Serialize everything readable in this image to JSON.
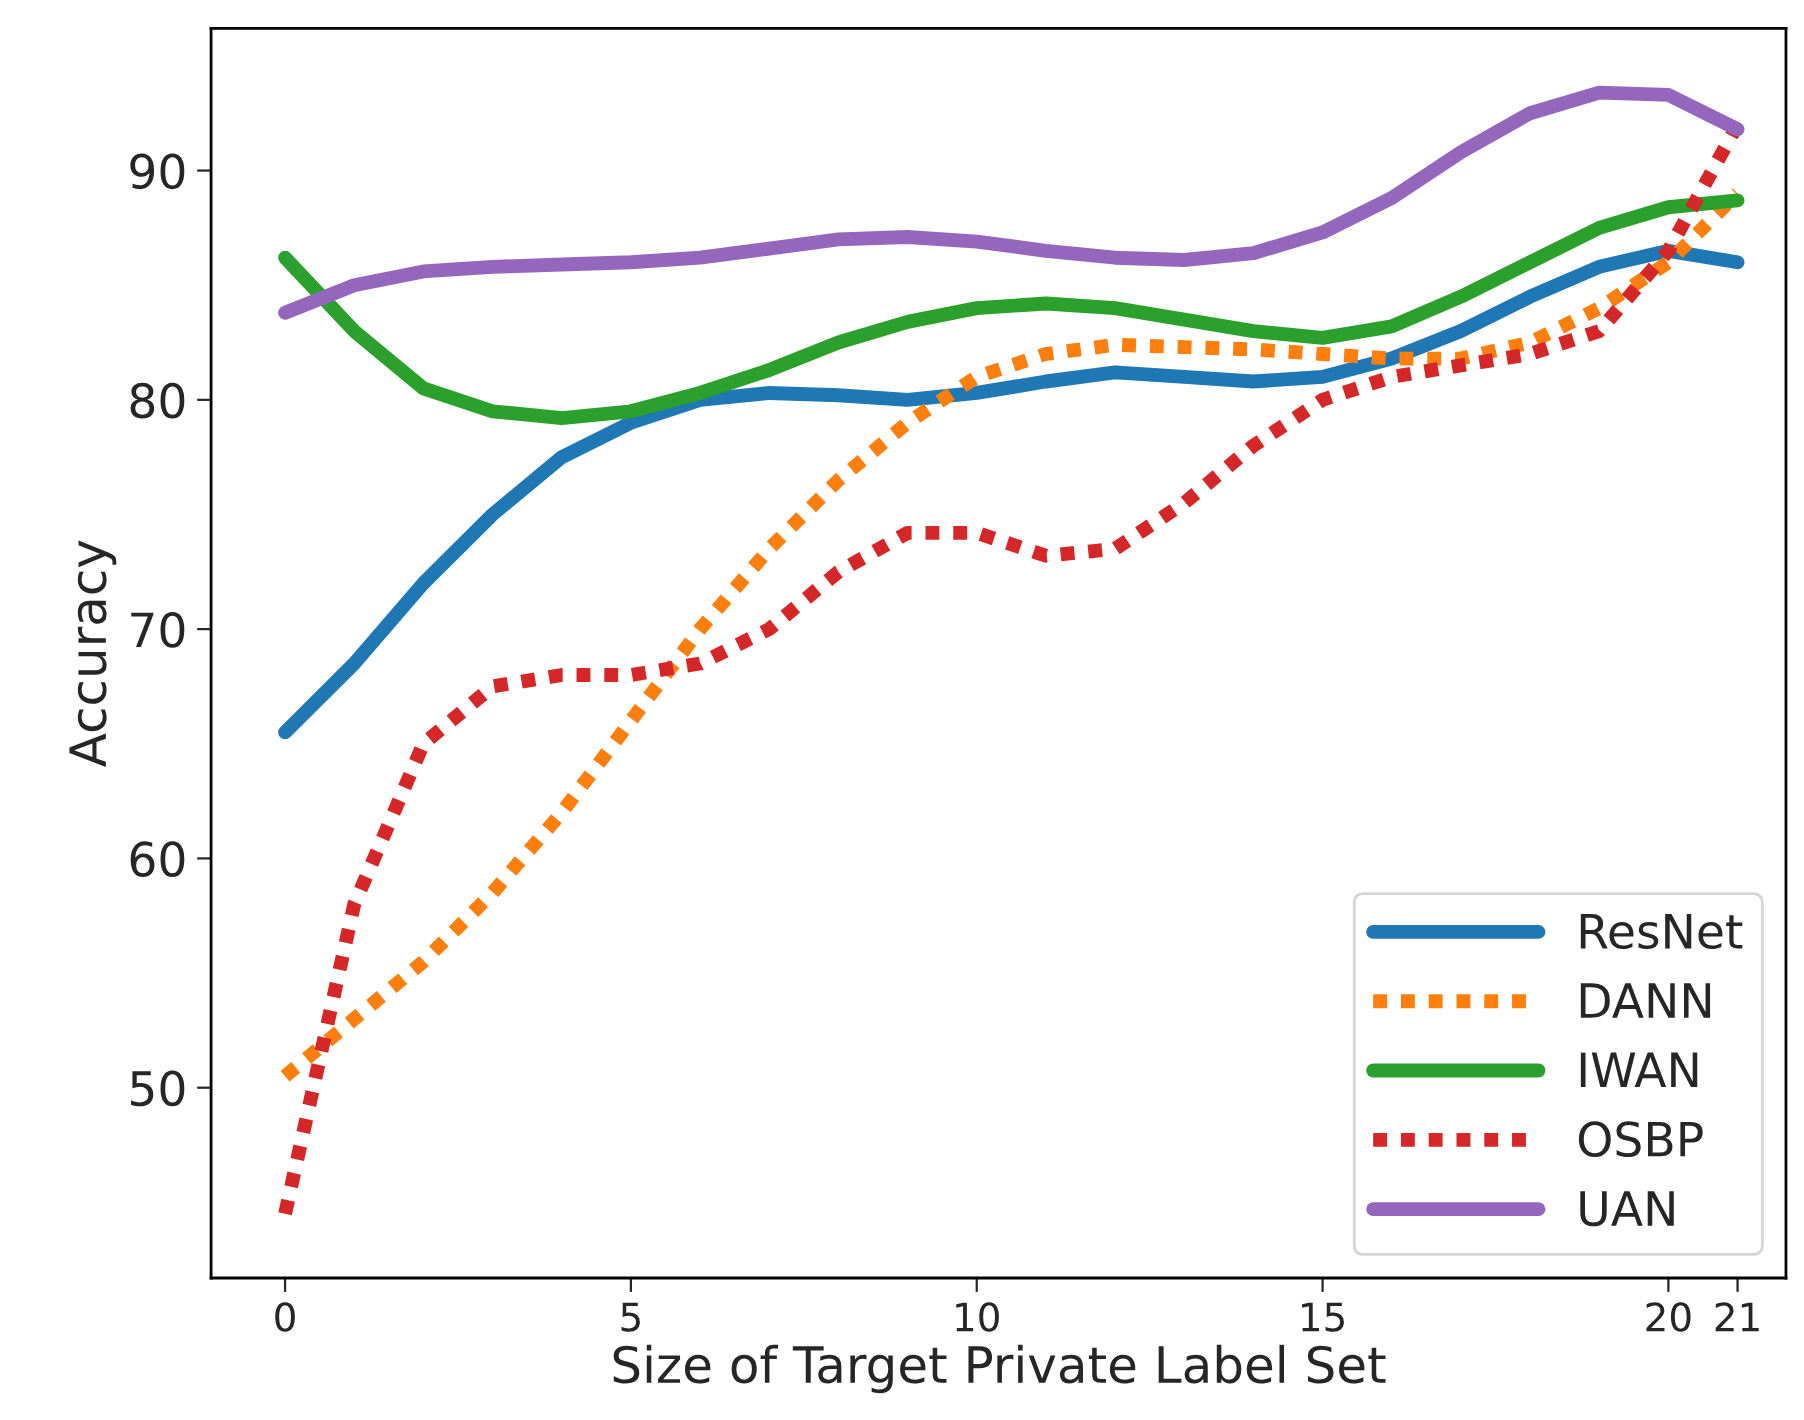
{
  "chart_data": {
    "type": "line",
    "xlabel": "Size of Target Private Label Set",
    "ylabel": "Accuracy",
    "x": [
      0,
      1,
      2,
      3,
      4,
      5,
      6,
      7,
      8,
      9,
      10,
      11,
      12,
      13,
      14,
      15,
      16,
      17,
      18,
      19,
      20,
      21
    ],
    "xlim": [
      -1.07,
      21.7
    ],
    "xticks": [
      0,
      5,
      10,
      15,
      20,
      21
    ],
    "ylim": [
      41.7,
      96.2
    ],
    "yticks": [
      50,
      60,
      70,
      80,
      90
    ],
    "grid": false,
    "legend": "bottom right",
    "marker": "none",
    "series": [
      {
        "name": "ResNet",
        "color": "#1f77b4",
        "line_style": "solid",
        "values": [
          65.5,
          68.5,
          72,
          75,
          77.5,
          79,
          80,
          80.3,
          80.2,
          80,
          80.3,
          80.8,
          81.2,
          81,
          80.8,
          81,
          81.8,
          83,
          84.5,
          85.8,
          86.5,
          86
        ]
      },
      {
        "name": "DANN",
        "color": "#ff7f0e",
        "line_style": "dotted",
        "values": [
          50.5,
          53,
          55.5,
          58.5,
          62,
          66,
          70,
          73.5,
          76.5,
          79,
          81,
          82,
          82.4,
          82.3,
          82.2,
          82,
          81.8,
          81.8,
          82.5,
          84,
          86,
          89
        ]
      },
      {
        "name": "IWAN",
        "color": "#2ca02c",
        "line_style": "solid",
        "values": [
          86.2,
          83,
          80.5,
          79.5,
          79.2,
          79.5,
          80.3,
          81.3,
          82.5,
          83.4,
          84,
          84.2,
          84,
          83.5,
          83,
          82.7,
          83.2,
          84.5,
          86,
          87.5,
          88.4,
          88.7
        ]
      },
      {
        "name": "OSBP",
        "color": "#d62728",
        "line_style": "dotted",
        "values": [
          44.5,
          58,
          65,
          67.5,
          68,
          68,
          68.5,
          70,
          72.5,
          74.2,
          74.2,
          73.2,
          73.5,
          75.5,
          78,
          80,
          81,
          81.5,
          82,
          83,
          86.5,
          92
        ]
      },
      {
        "name": "UAN",
        "color": "#9467bd",
        "line_style": "solid",
        "values": [
          83.8,
          85,
          85.6,
          85.8,
          85.9,
          86,
          86.2,
          86.6,
          87,
          87.1,
          86.9,
          86.5,
          86.2,
          86.1,
          86.4,
          87.3,
          88.8,
          90.8,
          92.5,
          93.4,
          93.3,
          91.8
        ]
      }
    ]
  }
}
